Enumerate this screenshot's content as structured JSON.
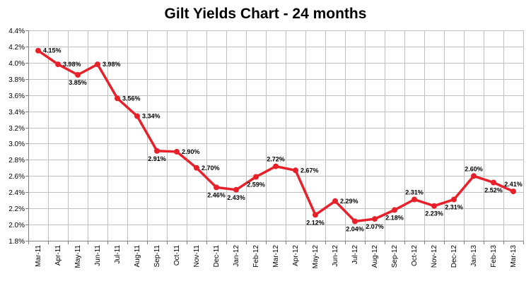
{
  "chart_data": {
    "type": "line",
    "title": "Gilt Yields Chart - 24 months",
    "xlabel": "",
    "ylabel": "",
    "categories": [
      "Mar-11",
      "Apr-11",
      "May-11",
      "Jun-11",
      "Jul-11",
      "Aug-11",
      "Sep-11",
      "Oct-11",
      "Nov-11",
      "Dec-11",
      "Jan-12",
      "Feb-12",
      "Mar-12",
      "Apr-12",
      "May-12",
      "Jun-12",
      "Jul-12",
      "Aug-12",
      "Sep-12",
      "Oct-12",
      "Nov-12",
      "Dec-12",
      "Jan-13",
      "Feb-13",
      "Mar-13"
    ],
    "series": [
      {
        "values": [
          4.15,
          3.98,
          3.85,
          3.98,
          3.56,
          3.34,
          2.91,
          2.9,
          2.7,
          2.46,
          2.43,
          2.59,
          2.72,
          2.67,
          2.12,
          2.29,
          2.04,
          2.07,
          2.18,
          2.31,
          2.23,
          2.31,
          2.6,
          2.52,
          2.41
        ],
        "labels": [
          "4.15%",
          "3.98%",
          "3.85%",
          "3.98%",
          "3.56%",
          "3.34%",
          "2.91%",
          "2.90%",
          "2.70%",
          "2.46%",
          "2.43%",
          "2.59%",
          "2.72%",
          "2.67%",
          "2.12%",
          "2.29%",
          "2.04%",
          "2.07%",
          "2.18%",
          "2.31%",
          "2.23%",
          "2.31%",
          "2.60%",
          "2.52%",
          "2.41%"
        ],
        "label_positions": [
          "right",
          "right",
          "below",
          "right",
          "right",
          "right",
          "below",
          "right",
          "right",
          "below",
          "below",
          "below",
          "above",
          "right",
          "below",
          "right",
          "below",
          "below",
          "below",
          "above",
          "below",
          "below",
          "above",
          "below",
          "above"
        ],
        "color": "#e8202a"
      }
    ],
    "ylim": [
      1.8,
      4.4
    ],
    "yticks": [
      "4.4%",
      "4.2%",
      "4.0%",
      "3.8%",
      "3.6%",
      "3.4%",
      "3.2%",
      "3.0%",
      "2.8%",
      "2.6%",
      "2.4%",
      "2.2%",
      "2.0%",
      "1.8%"
    ],
    "ytick_values": [
      4.4,
      4.2,
      4.0,
      3.8,
      3.6,
      3.4,
      3.2,
      3.0,
      2.8,
      2.6,
      2.4,
      2.2,
      2.0,
      1.8
    ],
    "grid": true,
    "legend": "none",
    "grid_color": "#bfbfbf",
    "axis_color": "#808080"
  }
}
